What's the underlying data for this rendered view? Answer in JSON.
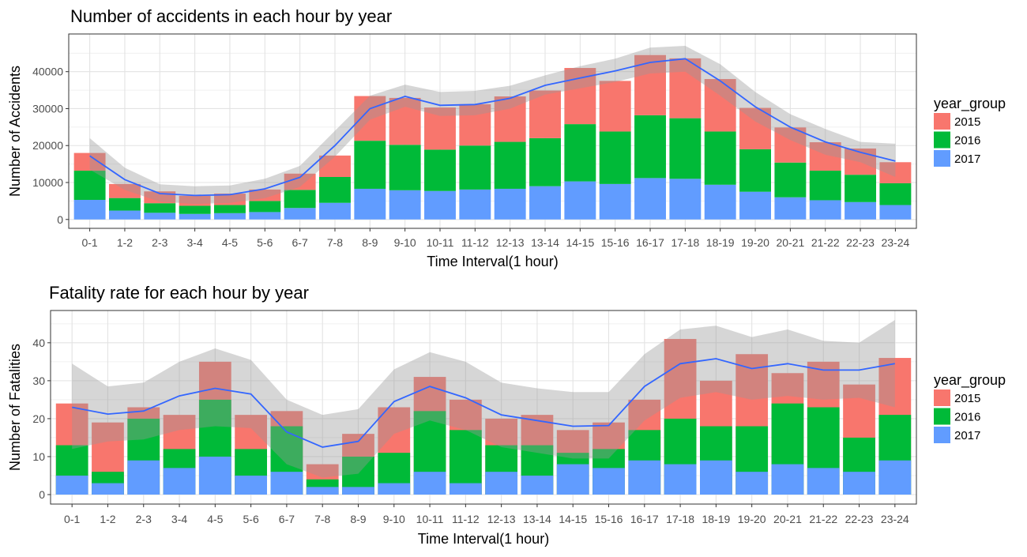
{
  "chart_data": [
    {
      "type": "bar",
      "stacked": true,
      "title": "Number of accidents in each hour by year",
      "xlabel": "Time Interval(1 hour)",
      "ylabel": "Number of Accidents",
      "categories": [
        "0-1",
        "1-2",
        "2-3",
        "3-4",
        "4-5",
        "5-6",
        "6-7",
        "7-8",
        "8-9",
        "9-10",
        "10-11",
        "11-12",
        "12-13",
        "13-14",
        "14-15",
        "15-16",
        "16-17",
        "17-18",
        "18-19",
        "19-20",
        "20-21",
        "21-22",
        "22-23",
        "23-24"
      ],
      "series": [
        {
          "name": "2017",
          "values": [
            5300,
            2400,
            1800,
            1500,
            1700,
            2000,
            3100,
            4500,
            8300,
            7900,
            7700,
            8100,
            8300,
            9000,
            10300,
            9600,
            11200,
            11000,
            9400,
            7500,
            6000,
            5200,
            4700,
            3900
          ]
        },
        {
          "name": "2016",
          "values": [
            7900,
            3400,
            2600,
            2200,
            2200,
            3000,
            4900,
            7000,
            13000,
            12300,
            11200,
            11900,
            12700,
            13000,
            15500,
            14200,
            17000,
            16400,
            14400,
            11500,
            9400,
            8000,
            7400,
            5900
          ]
        },
        {
          "name": "2015",
          "values": [
            4800,
            3800,
            3200,
            2700,
            3100,
            3100,
            4400,
            5800,
            12100,
            12700,
            11400,
            11200,
            12300,
            12900,
            15200,
            13700,
            16300,
            16200,
            14200,
            11200,
            9500,
            7700,
            7100,
            5700
          ]
        }
      ],
      "smooth_line": [
        17200,
        10800,
        7000,
        6500,
        6700,
        8300,
        11400,
        20000,
        30000,
        33300,
        30900,
        31100,
        32800,
        36300,
        38300,
        40200,
        42500,
        43500,
        37500,
        30500,
        25000,
        21000,
        18200,
        15800
      ],
      "smooth_band_upper": [
        22000,
        14000,
        9500,
        9000,
        9200,
        11000,
        14500,
        24000,
        33500,
        36500,
        34500,
        34800,
        36200,
        39000,
        41500,
        43500,
        46500,
        47000,
        42000,
        34500,
        28500,
        24500,
        21000,
        20500
      ],
      "smooth_band_lower": [
        13500,
        8000,
        4800,
        4200,
        4500,
        5800,
        8800,
        17000,
        27000,
        30500,
        28000,
        28200,
        30000,
        33800,
        35500,
        37200,
        39500,
        40000,
        33500,
        26500,
        21500,
        17500,
        15500,
        11500
      ],
      "ylim": [
        -2400,
        50200
      ],
      "yticks": [
        "0",
        "10000",
        "20000",
        "30000",
        "40000"
      ],
      "ytick_values": [
        0,
        10000,
        20000,
        30000,
        40000
      ],
      "grid": true,
      "legend_title": "year_group",
      "legend_labels": [
        "2015",
        "2016",
        "2017"
      ],
      "legend_placement": "right",
      "colors": {
        "2015": "#F8766D",
        "2016": "#00BA38",
        "2017": "#619CFF",
        "line": "#3366FF",
        "band": "#999999"
      }
    },
    {
      "type": "bar",
      "stacked": false,
      "title": "Fatality rate for each hour by year",
      "xlabel": "Time Interval(1 hour)",
      "ylabel": "Number of Fatalities",
      "categories": [
        "0-1",
        "1-2",
        "2-3",
        "3-4",
        "4-5",
        "5-6",
        "6-7",
        "7-8",
        "8-9",
        "9-10",
        "10-11",
        "11-12",
        "12-13",
        "13-14",
        "14-15",
        "15-16",
        "16-17",
        "17-18",
        "18-19",
        "19-20",
        "20-21",
        "21-22",
        "22-23",
        "23-24"
      ],
      "series": [
        {
          "name": "2015",
          "values": [
            24,
            19,
            23,
            21,
            35,
            21,
            22,
            8,
            16,
            23,
            31,
            25,
            20,
            21,
            17,
            19,
            25,
            41,
            30,
            37,
            32,
            35,
            29,
            36
          ]
        },
        {
          "name": "2016",
          "values": [
            13,
            6,
            20,
            12,
            25,
            12,
            18,
            4,
            10,
            11,
            22,
            17,
            13,
            13,
            11,
            12,
            17,
            20,
            18,
            18,
            24,
            23,
            15,
            21
          ]
        },
        {
          "name": "2017",
          "values": [
            5,
            3,
            9,
            7,
            10,
            5,
            6,
            2,
            2,
            3,
            6,
            3,
            6,
            5,
            8,
            7,
            9,
            8,
            9,
            6,
            8,
            7,
            6,
            9
          ]
        }
      ],
      "smooth_line": [
        23,
        21.2,
        22,
        26,
        28,
        26.5,
        16.5,
        12.5,
        14,
        24.5,
        28.5,
        25.5,
        21,
        19.5,
        18,
        18.2,
        28.5,
        34.5,
        35.8,
        33.2,
        34.5,
        32.8,
        32.8,
        34.5
      ],
      "smooth_band_upper": [
        34.5,
        28.5,
        29.5,
        35,
        38.5,
        35.5,
        25,
        21,
        22.5,
        33,
        37.5,
        35,
        29.5,
        28,
        27,
        27,
        37,
        43.5,
        44.5,
        41.5,
        43.5,
        40.5,
        40,
        46
      ],
      "smooth_band_lower": [
        12,
        14,
        14.5,
        17,
        18,
        17.5,
        8,
        4.5,
        5.5,
        16,
        19.5,
        17,
        12.5,
        11,
        9.5,
        9.5,
        19.5,
        25.5,
        27,
        25,
        26,
        25,
        25.5,
        23
      ],
      "ylim": [
        -2.5,
        48.5
      ],
      "yticks": [
        "0",
        "10",
        "20",
        "30",
        "40"
      ],
      "ytick_values": [
        0,
        10,
        20,
        30,
        40
      ],
      "grid": true,
      "legend_title": "year_group",
      "legend_labels": [
        "2015",
        "2016",
        "2017"
      ],
      "legend_placement": "right",
      "colors": {
        "2015": "#F8766D",
        "2016": "#00BA38",
        "2017": "#619CFF",
        "line": "#3366FF",
        "band": "#999999"
      }
    }
  ]
}
